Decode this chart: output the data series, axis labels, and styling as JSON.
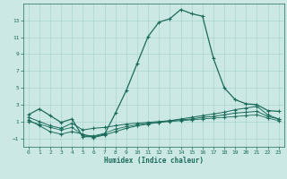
{
  "xlabel": "Humidex (Indice chaleur)",
  "bg_color": "#cce8e4",
  "grid_color": "#aad4ce",
  "line_color": "#1a6b5a",
  "xlim": [
    -0.5,
    23.5
  ],
  "ylim": [
    -2,
    15
  ],
  "xticks": [
    0,
    1,
    2,
    3,
    4,
    5,
    6,
    7,
    8,
    9,
    10,
    11,
    12,
    13,
    14,
    15,
    16,
    17,
    18,
    19,
    20,
    21,
    22,
    23
  ],
  "yticks": [
    -1,
    1,
    3,
    5,
    7,
    9,
    11,
    13
  ],
  "series1": [
    1.8,
    2.5,
    1.7,
    0.9,
    1.3,
    -0.8,
    -0.8,
    -0.5,
    2.0,
    4.7,
    7.9,
    11.1,
    12.8,
    13.2,
    14.3,
    13.8,
    13.5,
    8.5,
    5.0,
    3.6,
    3.1,
    3.0,
    2.3,
    2.2
  ],
  "series2": [
    1.5,
    1.0,
    0.5,
    0.2,
    0.8,
    0.0,
    0.2,
    0.3,
    0.5,
    0.7,
    0.8,
    0.9,
    1.0,
    1.1,
    1.2,
    1.3,
    1.5,
    1.6,
    1.8,
    2.0,
    2.1,
    2.2,
    1.6,
    1.3
  ],
  "series3": [
    1.2,
    0.5,
    -0.2,
    -0.5,
    -0.2,
    -0.5,
    -0.9,
    -0.6,
    -0.2,
    0.2,
    0.5,
    0.7,
    0.9,
    1.1,
    1.3,
    1.5,
    1.7,
    1.9,
    2.1,
    2.4,
    2.6,
    2.8,
    1.8,
    1.3
  ],
  "series4": [
    1.0,
    0.7,
    0.3,
    0.0,
    0.3,
    -0.6,
    -0.7,
    -0.4,
    0.1,
    0.4,
    0.6,
    0.8,
    0.9,
    1.0,
    1.1,
    1.2,
    1.3,
    1.4,
    1.5,
    1.6,
    1.7,
    1.8,
    1.4,
    1.1
  ]
}
